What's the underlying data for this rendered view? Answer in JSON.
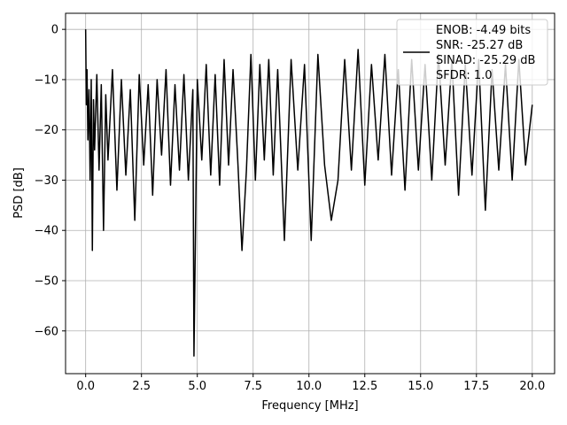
{
  "chart_data": {
    "type": "line",
    "xlabel": "Frequency [MHz]",
    "ylabel": "PSD [dB]",
    "xlim": [
      -0.9,
      21.0
    ],
    "ylim": [
      -68.5,
      3.2
    ],
    "xticks": [
      0.0,
      2.5,
      5.0,
      7.5,
      10.0,
      12.5,
      15.0,
      17.5,
      20.0
    ],
    "xtick_labels": [
      "0.0",
      "2.5",
      "5.0",
      "7.5",
      "10.0",
      "12.5",
      "15.0",
      "17.5",
      "20.0"
    ],
    "yticks": [
      0,
      -10,
      -20,
      -30,
      -40,
      -50,
      -60
    ],
    "ytick_labels": [
      "0",
      "−10",
      "−20",
      "−30",
      "−40",
      "−50",
      "−60"
    ],
    "grid": true,
    "legend_position": "top-right",
    "series": [
      {
        "name": "ENOB: -4.49 bits\nSNR: -25.27 dB\nSINAD: -25.29 dB\nSFDR: 1.0",
        "legend_lines": [
          "ENOB: -4.49 bits",
          "SNR: -25.27 dB",
          "SINAD: -25.29 dB",
          "SFDR: 1.0"
        ],
        "color": "#000000",
        "x": [
          0.0,
          0.03,
          0.06,
          0.1,
          0.15,
          0.2,
          0.25,
          0.3,
          0.35,
          0.4,
          0.5,
          0.6,
          0.7,
          0.8,
          0.9,
          1.0,
          1.2,
          1.4,
          1.6,
          1.8,
          2.0,
          2.2,
          2.4,
          2.6,
          2.8,
          3.0,
          3.2,
          3.4,
          3.6,
          3.8,
          4.0,
          4.2,
          4.4,
          4.6,
          4.8,
          4.85,
          5.0,
          5.2,
          5.4,
          5.6,
          5.8,
          6.0,
          6.2,
          6.4,
          6.6,
          6.8,
          7.0,
          7.2,
          7.4,
          7.6,
          7.8,
          8.0,
          8.2,
          8.4,
          8.6,
          8.9,
          9.2,
          9.5,
          9.8,
          10.1,
          10.4,
          10.7,
          11.0,
          11.3,
          11.6,
          11.9,
          12.2,
          12.5,
          12.8,
          13.1,
          13.4,
          13.7,
          14.0,
          14.3,
          14.6,
          14.9,
          15.2,
          15.5,
          15.8,
          16.1,
          16.4,
          16.7,
          17.0,
          17.3,
          17.6,
          17.9,
          18.2,
          18.5,
          18.8,
          19.1,
          19.4,
          19.7,
          20.0
        ],
        "y": [
          0.0,
          -15.0,
          -8.0,
          -22.0,
          -12.0,
          -30.0,
          -10.0,
          -44.0,
          -14.0,
          -24.0,
          -9.0,
          -28.0,
          -11.0,
          -40.0,
          -13.0,
          -26.0,
          -8.0,
          -32.0,
          -10.0,
          -29.0,
          -12.0,
          -38.0,
          -9.0,
          -27.0,
          -11.0,
          -33.0,
          -10.0,
          -25.0,
          -8.0,
          -31.0,
          -11.0,
          -28.0,
          -9.0,
          -30.0,
          -12.0,
          -65.0,
          -10.0,
          -26.0,
          -7.0,
          -29.0,
          -9.0,
          -31.0,
          -6.0,
          -27.0,
          -8.0,
          -25.0,
          -44.0,
          -28.0,
          -5.0,
          -30.0,
          -7.0,
          -26.0,
          -6.0,
          -29.0,
          -8.0,
          -42.0,
          -6.0,
          -28.0,
          -7.0,
          -42.0,
          -5.0,
          -27.0,
          -38.0,
          -30.0,
          -6.0,
          -28.0,
          -4.0,
          -31.0,
          -7.0,
          -26.0,
          -5.0,
          -29.0,
          -8.0,
          -32.0,
          -6.0,
          -28.0,
          -7.0,
          -30.0,
          -5.0,
          -27.0,
          -6.0,
          -33.0,
          -7.0,
          -29.0,
          -6.0,
          -36.0,
          -8.0,
          -28.0,
          -7.0,
          -30.0,
          -6.0,
          -27.0,
          -15.0
        ]
      }
    ]
  }
}
